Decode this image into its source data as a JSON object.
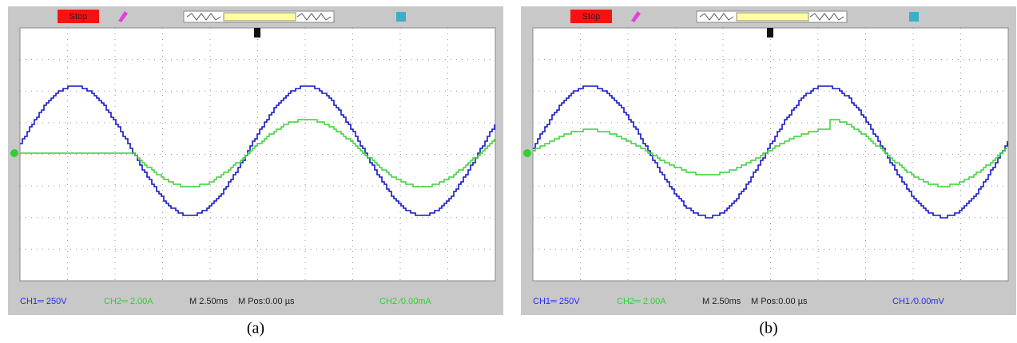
{
  "panels": [
    {
      "status": "Stop",
      "ch1": "CH1═ 250V",
      "ch2": "CH2═ 2.00A",
      "timebase": "M 2.50ms",
      "mpos": "M Pos:0.00 µs",
      "trigger": "CH2 ⁄0.00mA",
      "caption": "(a)"
    },
    {
      "status": "Stop",
      "ch1": "CH1═ 250V",
      "ch2": "CH2═ 2.00A",
      "timebase": "M 2.50ms",
      "mpos": "M Pos:0.00 µs",
      "trigger": "CH1 ⁄0.00mV",
      "caption": "(b)"
    }
  ]
}
